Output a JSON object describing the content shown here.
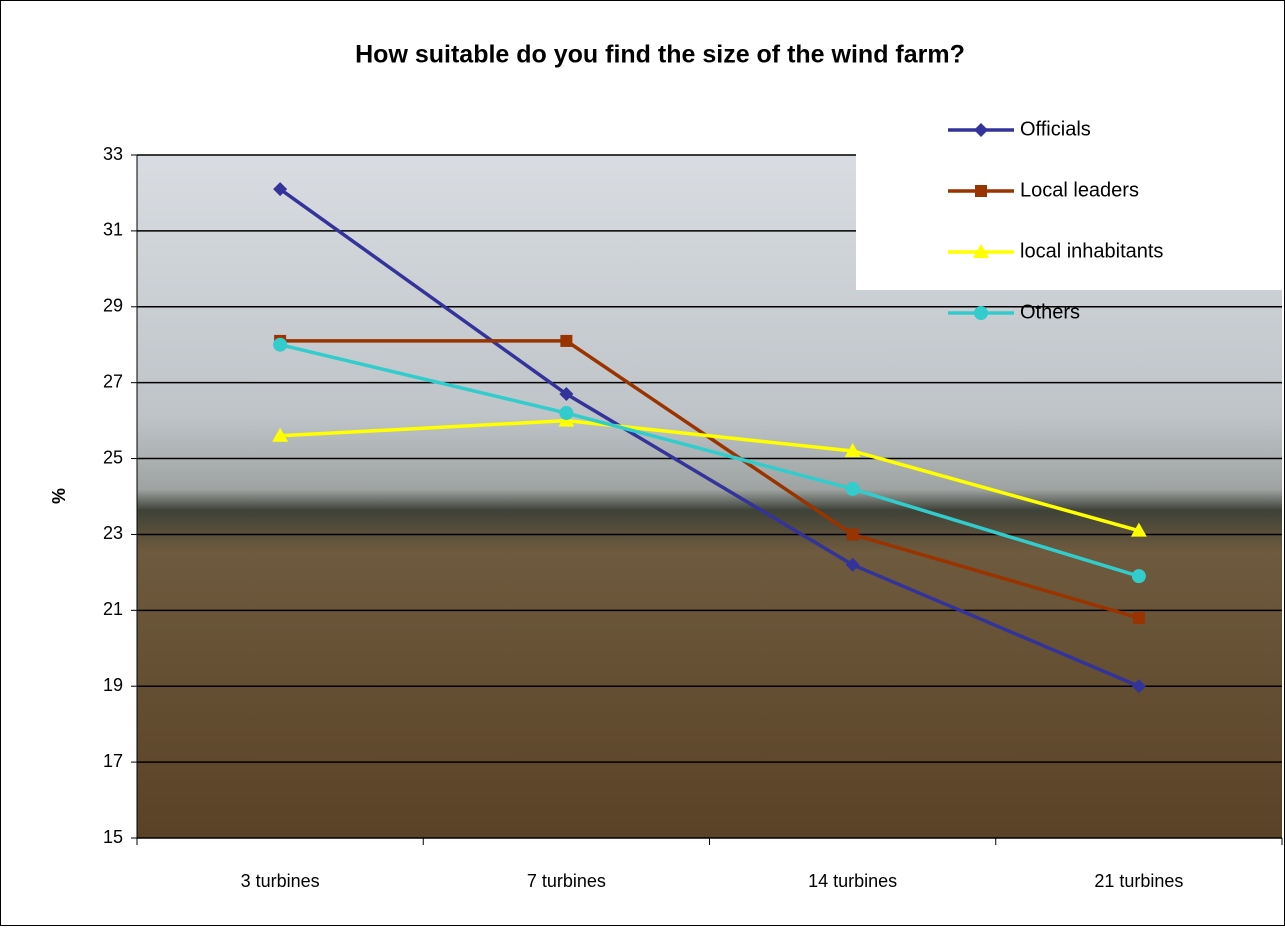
{
  "chart_data": {
    "type": "line",
    "title": "How suitable do you find the size of the wind farm?",
    "y_label": "%",
    "categories": [
      "3 turbines",
      "7 turbines",
      "14 turbines",
      "21 turbines"
    ],
    "series": [
      {
        "name": "Officials",
        "color": "#333399",
        "marker": "diamond",
        "values": [
          32.1,
          26.7,
          22.2,
          19.0
        ]
      },
      {
        "name": "Local leaders",
        "color": "#993300",
        "marker": "square",
        "values": [
          28.1,
          28.1,
          23.0,
          20.8
        ]
      },
      {
        "name": "local inhabitants",
        "color": "#ffff00",
        "marker": "triangle",
        "values": [
          25.6,
          26.0,
          25.2,
          23.1
        ]
      },
      {
        "name": "Others",
        "color": "#33cccc",
        "marker": "circle",
        "values": [
          28.0,
          26.2,
          24.2,
          21.9
        ]
      }
    ],
    "ylim": [
      15,
      33
    ],
    "yticks": [
      15,
      17,
      19,
      21,
      23,
      25,
      27,
      29,
      31,
      33
    ],
    "grid": true,
    "legend": "upper right"
  }
}
